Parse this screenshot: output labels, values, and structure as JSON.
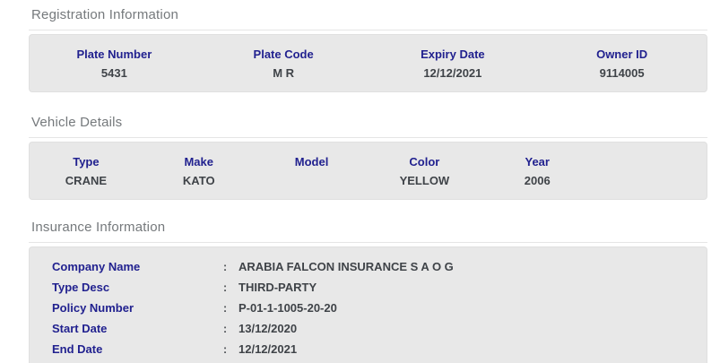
{
  "colors": {
    "label_navy": "#21218f",
    "value_gray": "#3f4348",
    "section_title_gray": "#75797c",
    "panel_background": "#e8e8e8",
    "divider": "#e5e5e5",
    "page_background": "#ffffff"
  },
  "sections": {
    "registration": {
      "title": "Registration Information",
      "fields": [
        {
          "label": "Plate Number",
          "value": "5431"
        },
        {
          "label": "Plate Code",
          "value": "M R"
        },
        {
          "label": "Expiry Date",
          "value": "12/12/2021"
        },
        {
          "label": "Owner ID",
          "value": "9114005"
        }
      ]
    },
    "vehicle": {
      "title": "Vehicle Details",
      "fields": [
        {
          "label": "Type",
          "value": "CRANE"
        },
        {
          "label": "Make",
          "value": "KATO"
        },
        {
          "label": "Model",
          "value": ""
        },
        {
          "label": "Color",
          "value": "YELLOW"
        },
        {
          "label": "Year",
          "value": "2006"
        }
      ]
    },
    "insurance": {
      "title": "Insurance Information",
      "separator": ":",
      "rows": [
        {
          "label": "Company Name",
          "value": "ARABIA FALCON INSURANCE S A O G"
        },
        {
          "label": "Type Desc",
          "value": "THIRD-PARTY"
        },
        {
          "label": "Policy Number",
          "value": "P-01-1-1005-20-20"
        },
        {
          "label": "Start Date",
          "value": "13/12/2020"
        },
        {
          "label": "End Date",
          "value": "12/12/2021"
        }
      ]
    }
  }
}
